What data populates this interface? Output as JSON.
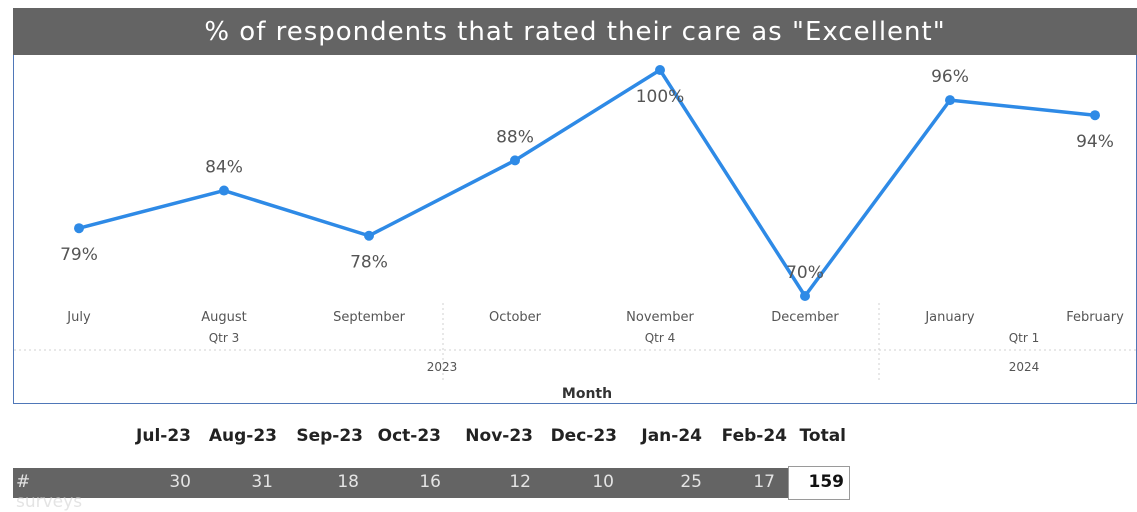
{
  "title": "% of respondents that rated their care as \"Excellent\"",
  "chart_data": {
    "type": "line",
    "title": "% of respondents that rated their care as \"Excellent\"",
    "xlabel": "Month",
    "ylabel": "",
    "categories": [
      "July",
      "August",
      "September",
      "October",
      "November",
      "December",
      "January",
      "February"
    ],
    "values": [
      79,
      84,
      78,
      88,
      100,
      70,
      96,
      94
    ],
    "data_labels": [
      "79%",
      "84%",
      "78%",
      "88%",
      "100%",
      "70%",
      "96%",
      "94%"
    ],
    "quarters": [
      "Qtr 3",
      "Qtr 4",
      "Qtr 1"
    ],
    "years": [
      "2023",
      "2024"
    ],
    "ylim": [
      70,
      100
    ],
    "grid": false,
    "line_color": "#2e8ae6"
  },
  "table": {
    "headers": [
      "Jul-23",
      "Aug-23",
      "Sep-23",
      "Oct-23",
      "Nov-23",
      "Dec-23",
      "Jan-24",
      "Feb-24",
      "Total"
    ],
    "row_label": "# surveys",
    "values": [
      "30",
      "31",
      "18",
      "16",
      "12",
      "10",
      "25",
      "17"
    ],
    "total": "159"
  }
}
